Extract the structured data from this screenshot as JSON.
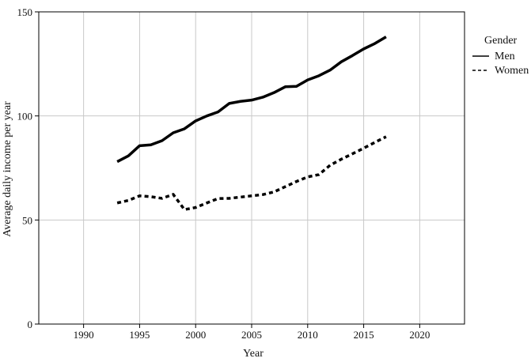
{
  "chart_data": {
    "type": "line",
    "title": "",
    "xlabel": "Year",
    "ylabel": "Average daily income per year",
    "xlim": [
      1986,
      2024
    ],
    "ylim": [
      0,
      150
    ],
    "xticks": [
      1990,
      1995,
      2000,
      2005,
      2010,
      2015,
      2020
    ],
    "yticks": [
      0,
      50,
      100,
      150
    ],
    "grid": true,
    "legend": {
      "title": "Gender",
      "position": "right"
    },
    "x": [
      1993,
      1994,
      1995,
      1996,
      1997,
      1998,
      1999,
      2000,
      2001,
      2002,
      2003,
      2004,
      2005,
      2006,
      2007,
      2008,
      2009,
      2010,
      2011,
      2012,
      2013,
      2014,
      2015,
      2016,
      2017
    ],
    "series": [
      {
        "name": "Men",
        "style": "solid",
        "color": "#000000",
        "values": [
          78,
          80.8,
          85.7,
          86.1,
          88.1,
          91.9,
          93.8,
          97.6,
          100,
          101.9,
          106,
          107,
          107.6,
          109,
          111.2,
          114,
          114.2,
          117.3,
          119.3,
          122,
          126,
          129,
          132.2,
          134.8,
          138
        ]
      },
      {
        "name": "Women",
        "style": "dashed",
        "color": "#000000",
        "values": [
          58.2,
          59.4,
          61.6,
          61.2,
          60.4,
          62.3,
          55,
          56,
          58.2,
          60.3,
          60.4,
          61,
          61.6,
          62.2,
          63.5,
          66,
          68.5,
          70.7,
          71.8,
          76.3,
          79.2,
          81.8,
          84.5,
          87.3,
          90
        ]
      }
    ]
  }
}
